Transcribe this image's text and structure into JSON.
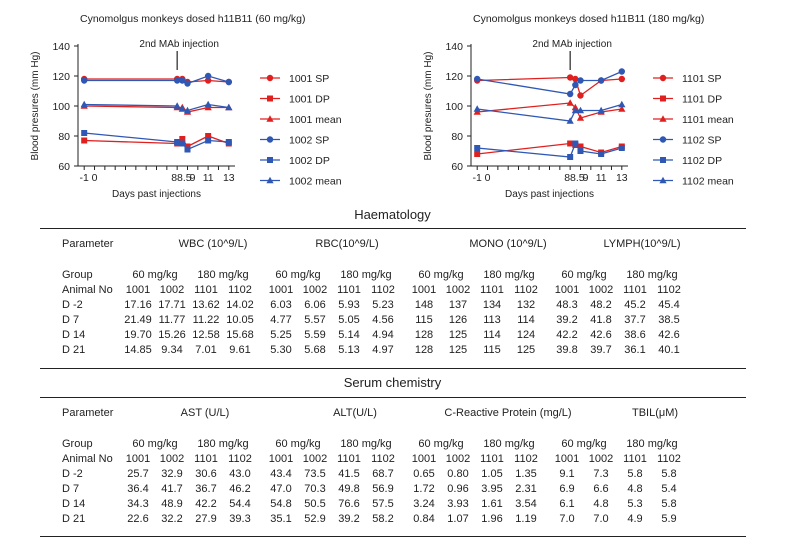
{
  "chart_data": [
    {
      "type": "line",
      "title": "Cynomolgus monkeys dosed h11B11 (60 mg/kg)",
      "xlabel": "Days past injections",
      "ylabel": "Blood presures (mm Hg)",
      "ylim": [
        60,
        140
      ],
      "yticks": [
        60,
        80,
        100,
        120,
        140
      ],
      "xlim": [
        -1.6,
        13.6
      ],
      "xticks": [
        -1,
        0,
        1,
        2,
        3,
        4,
        5,
        6,
        7,
        8,
        9,
        10,
        11,
        12,
        13
      ],
      "xticklabels": [
        "-1",
        "0",
        "8",
        "8.5",
        "9",
        "11",
        "13"
      ],
      "annotation": "2nd MAb injection",
      "legend_position": "right",
      "x": [
        -1,
        8,
        8.5,
        9,
        11,
        13
      ],
      "series": [
        {
          "name": "1001 SP",
          "color": "#e0201f",
          "marker": "circle",
          "values": [
            118,
            118,
            118,
            116,
            117,
            116
          ]
        },
        {
          "name": "1001 DP",
          "color": "#e0201f",
          "marker": "square",
          "values": [
            77,
            75,
            78,
            73,
            80,
            75
          ]
        },
        {
          "name": "1001 mean",
          "color": "#e0201f",
          "marker": "triangle",
          "values": [
            100,
            99,
            99,
            96,
            99,
            99
          ]
        },
        {
          "name": "1002 SP",
          "color": "#2f57b4",
          "marker": "circle",
          "values": [
            117,
            117,
            117,
            115,
            120,
            116
          ]
        },
        {
          "name": "1002 DP",
          "color": "#2f57b4",
          "marker": "square",
          "values": [
            82,
            76,
            75,
            71,
            77,
            76
          ]
        },
        {
          "name": "1002 mean",
          "color": "#2f57b4",
          "marker": "triangle",
          "values": [
            101,
            100,
            98,
            97,
            101,
            99
          ]
        }
      ]
    },
    {
      "type": "line",
      "title": "Cynomolgus monkeys dosed h11B11 (180 mg/kg)",
      "xlabel": "Days past injections",
      "ylabel": "Blood presures (mm Hg)",
      "ylim": [
        60,
        140
      ],
      "yticks": [
        60,
        80,
        100,
        120,
        140
      ],
      "xlim": [
        -1.6,
        13.6
      ],
      "xticks": [
        -1,
        0,
        1,
        2,
        3,
        4,
        5,
        6,
        7,
        8,
        9,
        10,
        11,
        12,
        13
      ],
      "xticklabels": [
        "-1",
        "0",
        "8",
        "8.5",
        "9",
        "11",
        "13"
      ],
      "annotation": "2nd MAb injection",
      "legend_position": "right",
      "x": [
        -1,
        8,
        8.5,
        9,
        11,
        13
      ],
      "series": [
        {
          "name": "1101 SP",
          "color": "#e0201f",
          "marker": "circle",
          "values": [
            117,
            119,
            118,
            107,
            117,
            118
          ]
        },
        {
          "name": "1101 DP",
          "color": "#e0201f",
          "marker": "square",
          "values": [
            68,
            75,
            74,
            73,
            69,
            73
          ]
        },
        {
          "name": "1101 mean",
          "color": "#e0201f",
          "marker": "triangle",
          "values": [
            96,
            102,
            99,
            92,
            96,
            98
          ]
        },
        {
          "name": "1102 SP",
          "color": "#2f57b4",
          "marker": "circle",
          "values": [
            118,
            108,
            114,
            117,
            117,
            123
          ]
        },
        {
          "name": "1102 DP",
          "color": "#2f57b4",
          "marker": "square",
          "values": [
            72,
            66,
            75,
            70,
            68,
            72
          ]
        },
        {
          "name": "1102 mean",
          "color": "#2f57b4",
          "marker": "triangle",
          "values": [
            98,
            90,
            97,
            97,
            97,
            101
          ]
        }
      ]
    }
  ],
  "tables": [
    {
      "title": "Haematology",
      "header": [
        "Parameter",
        "WBC (10^9/L)",
        "RBC(10^9/L)",
        "MONO (10^9/L)",
        "LYMPH(10^9/L)"
      ],
      "group_label": "Group",
      "groups": [
        "60 mg/kg",
        "180 mg/kg",
        "60 mg/kg",
        "180 mg/kg",
        "60 mg/kg",
        "180 mg/kg",
        "60 mg/kg",
        "180 mg/kg"
      ],
      "animal_label": "Animal No",
      "animals": [
        "1001",
        "1002",
        "1101",
        "1102",
        "1001",
        "1002",
        "1101",
        "1102",
        "1001",
        "1002",
        "1101",
        "1102",
        "1001",
        "1002",
        "1101",
        "1102"
      ],
      "rows": [
        {
          "label": "D -2",
          "values": [
            "17.16",
            "17.71",
            "13.62",
            "14.02",
            "6.03",
            "6.06",
            "5.93",
            "5.23",
            "148",
            "137",
            "134",
            "132",
            "48.3",
            "48.2",
            "45.2",
            "45.4"
          ]
        },
        {
          "label": "D  7",
          "values": [
            "21.49",
            "11.77",
            "11.22",
            "10.05",
            "4.77",
            "5.57",
            "5.05",
            "4.56",
            "115",
            "126",
            "113",
            "114",
            "39.2",
            "41.8",
            "37.7",
            "38.5"
          ]
        },
        {
          "label": "D 14",
          "values": [
            "19.70",
            "15.26",
            "12.58",
            "15.68",
            "5.25",
            "5.59",
            "5.14",
            "4.94",
            "128",
            "125",
            "114",
            "124",
            "42.2",
            "42.6",
            "38.6",
            "42.6"
          ]
        },
        {
          "label": "D 21",
          "values": [
            "14.85",
            "9.34",
            "7.01",
            "9.61",
            "5.30",
            "5.68",
            "5.13",
            "4.97",
            "128",
            "125",
            "115",
            "125",
            "39.8",
            "39.7",
            "36.1",
            "40.1"
          ]
        }
      ]
    },
    {
      "title": "Serum chemistry",
      "header": [
        "Parameter",
        "AST (U/L)",
        "ALT(U/L)",
        "C-Reactive Protein (mg/L)",
        "TBIL(μM)"
      ],
      "group_label": "Group",
      "groups": [
        "60 mg/kg",
        "180 mg/kg",
        "60 mg/kg",
        "180 mg/kg",
        "60 mg/kg",
        "180 mg/kg",
        "60 mg/kg",
        "180 mg/kg"
      ],
      "animal_label": "Animal No",
      "animals": [
        "1001",
        "1002",
        "1101",
        "1102",
        "1001",
        "1002",
        "1101",
        "1102",
        "1001",
        "1002",
        "1101",
        "1102",
        "1001",
        "1002",
        "1101",
        "1102"
      ],
      "rows": [
        {
          "label": "D -2",
          "values": [
            "25.7",
            "32.9",
            "30.6",
            "43.0",
            "43.4",
            "73.5",
            "41.5",
            "68.7",
            "0.65",
            "0.80",
            "1.05",
            "1.35",
            "9.1",
            "7.3",
            "5.8",
            "5.8"
          ]
        },
        {
          "label": "D  7",
          "values": [
            "36.4",
            "41.7",
            "36.7",
            "46.2",
            "47.0",
            "70.3",
            "49.8",
            "56.9",
            "1.72",
            "0.96",
            "3.95",
            "2.31",
            "6.9",
            "6.6",
            "4.8",
            "5.4"
          ]
        },
        {
          "label": "D 14",
          "values": [
            "34.3",
            "48.9",
            "42.2",
            "54.4",
            "54.8",
            "50.5",
            "76.6",
            "57.5",
            "3.24",
            "3.93",
            "1.61",
            "3.54",
            "6.1",
            "4.8",
            "5.3",
            "5.8"
          ]
        },
        {
          "label": "D 21",
          "values": [
            "22.6",
            "32.2",
            "27.9",
            "39.3",
            "35.1",
            "52.9",
            "39.2",
            "58.2",
            "0.84",
            "1.07",
            "1.96",
            "1.19",
            "7.0",
            "7.0",
            "4.9",
            "5.9"
          ]
        }
      ]
    }
  ]
}
